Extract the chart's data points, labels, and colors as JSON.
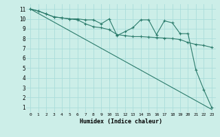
{
  "xlabel": "Humidex (Indice chaleur)",
  "bg_color": "#cceee8",
  "grid_color": "#aaddda",
  "line_color": "#2a7a6a",
  "xlim": [
    -0.5,
    23.5
  ],
  "ylim": [
    0.5,
    11.5
  ],
  "xticks": [
    0,
    1,
    2,
    3,
    4,
    5,
    6,
    7,
    8,
    9,
    10,
    11,
    12,
    13,
    14,
    15,
    16,
    17,
    18,
    19,
    20,
    21,
    22,
    23
  ],
  "yticks": [
    1,
    2,
    3,
    4,
    5,
    6,
    7,
    8,
    9,
    10,
    11
  ],
  "line1_x": [
    0,
    1,
    2,
    3,
    4,
    5,
    6,
    7,
    8,
    9,
    10,
    11,
    12,
    13,
    14,
    15,
    16,
    17,
    18,
    19,
    20,
    21,
    22,
    23
  ],
  "line1_y": [
    11,
    10.8,
    10.5,
    10.2,
    10.1,
    10.0,
    10.0,
    9.9,
    9.9,
    9.5,
    10.0,
    8.3,
    8.7,
    9.1,
    9.9,
    9.9,
    8.4,
    9.8,
    9.6,
    8.5,
    8.5,
    4.8,
    2.8,
    1.0
  ],
  "line2_x": [
    0,
    1,
    2,
    3,
    4,
    5,
    6,
    7,
    8,
    9,
    10,
    11,
    12,
    13,
    14,
    15,
    16,
    17,
    18,
    19,
    20,
    21,
    22,
    23
  ],
  "line2_y": [
    11,
    10.8,
    10.5,
    10.2,
    10.1,
    10.0,
    9.9,
    9.5,
    9.2,
    9.1,
    8.9,
    8.4,
    8.3,
    8.2,
    8.2,
    8.15,
    8.1,
    8.05,
    8.0,
    7.9,
    7.6,
    7.4,
    7.3,
    7.1
  ],
  "line3_x": [
    0,
    23
  ],
  "line3_y": [
    11,
    0.8
  ]
}
